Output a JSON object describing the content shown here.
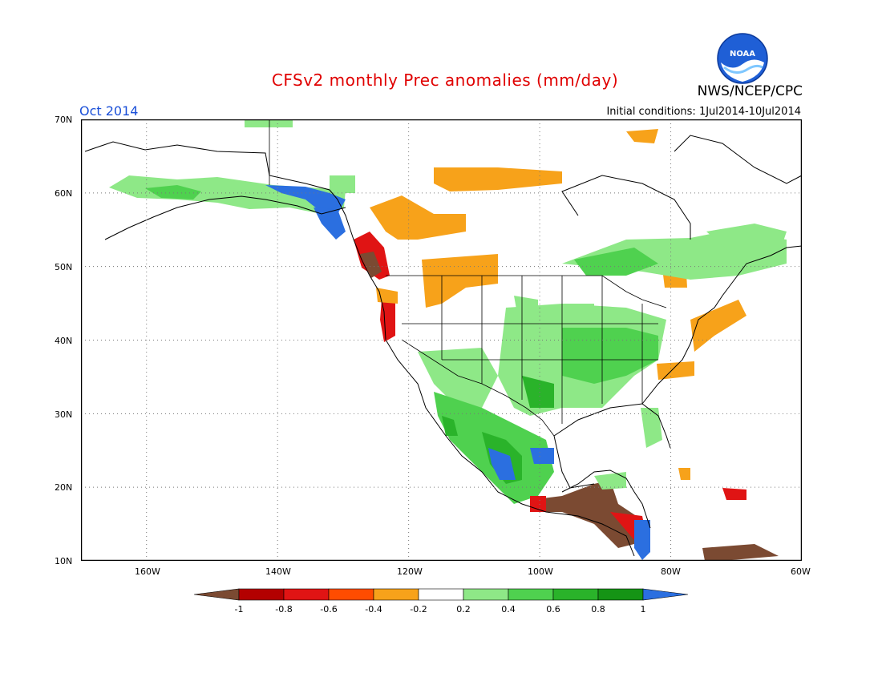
{
  "header": {
    "title": "CFSv2 monthly Prec anomalies (mm/day)",
    "organization": "NWS/NCEP/CPC",
    "logo_text": "NOAA",
    "month": "Oct 2014",
    "initial_conditions": "Initial conditions:  1Jul2014-10Jul2014"
  },
  "map": {
    "lon_range": [
      -170,
      -60
    ],
    "lat_range": [
      10,
      70
    ],
    "lon_ticks": [
      "160W",
      "140W",
      "120W",
      "100W",
      "80W",
      "60W"
    ],
    "lat_ticks": [
      "70N",
      "60N",
      "50N",
      "40N",
      "30N",
      "20N",
      "10N"
    ],
    "gridlines": "dotted"
  },
  "legend": {
    "labels": [
      "-1",
      "-0.8",
      "-0.6",
      "-0.4",
      "-0.2",
      "0.2",
      "0.4",
      "0.6",
      "0.8",
      "1"
    ],
    "colors": {
      "below_-1": "#7b4a32",
      "-1_-0.8": "#b30000",
      "-0.8_-0.6": "#e01414",
      "-0.6_-0.4": "#ff4c00",
      "-0.4_-0.2": "#f7a21a",
      "-0.2_0.2": "#ffffff",
      "0.2_0.4": "#8ee887",
      "0.4_0.6": "#4fd14f",
      "0.6_0.8": "#2ab32a",
      "0.8_1": "#159415",
      "above_1": "#2b6fe0"
    }
  },
  "colors": {
    "title": "#e00000",
    "month": "#1a4fd8"
  }
}
